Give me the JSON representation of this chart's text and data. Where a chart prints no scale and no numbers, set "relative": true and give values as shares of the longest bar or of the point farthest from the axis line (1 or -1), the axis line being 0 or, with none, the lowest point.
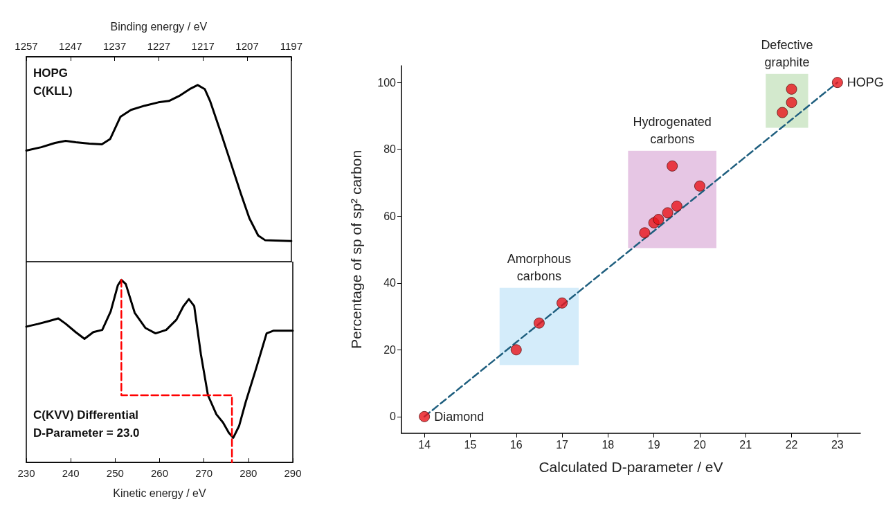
{
  "chart_data": [
    {
      "type": "line",
      "relative": true,
      "xlim": [
        1257,
        1197
      ],
      "xticks": [
        1257,
        1247,
        1237,
        1227,
        1217,
        1207,
        1197
      ],
      "xlabel": "Binding energy / eV",
      "annotations": [
        "HOPG",
        "C(KLL)"
      ],
      "series": [
        {
          "color": "#000000",
          "x": [
            1257,
            1253.6,
            1250.5,
            1248.1,
            1245.8,
            1242.7,
            1239.9,
            1238,
            1235.7,
            1233.3,
            1230.2,
            1227.1,
            1224.7,
            1222.4,
            1220,
            1218.2,
            1216.6,
            1215.4,
            1213,
            1210.7,
            1208.4,
            1206.5,
            1204.5,
            1202.9,
            1197
          ],
          "values": [
            0.629,
            0.648,
            0.672,
            0.684,
            0.676,
            0.668,
            0.664,
            0.695,
            0.82,
            0.859,
            0.883,
            0.902,
            0.91,
            0.938,
            0.977,
            1,
            0.977,
            0.91,
            0.734,
            0.559,
            0.383,
            0.246,
            0.148,
            0.121,
            0.117
          ]
        }
      ]
    },
    {
      "type": "line",
      "relative": true,
      "xlim": [
        230,
        290
      ],
      "xticks": [
        230,
        240,
        250,
        260,
        270,
        280,
        290
      ],
      "xlabel": "Kinetic energy / eV",
      "annotations": [
        "C(KVV) Differential",
        "D-Parameter = 23.0"
      ],
      "series": [
        {
          "color": "#000000",
          "x": [
            230,
            232.7,
            235,
            237.2,
            238.9,
            241.1,
            243.1,
            245.1,
            247.1,
            249,
            250.6,
            251.4,
            252.4,
            254.4,
            256.8,
            259.1,
            261.5,
            263.8,
            265.4,
            266.6,
            267.8,
            269.3,
            270.9,
            272.8,
            274.3,
            275.6,
            276.6,
            277.9,
            279.4,
            281.8,
            284.1,
            285.7,
            290
          ],
          "values": [
            0.744,
            0.759,
            0.774,
            0.789,
            0.759,
            0.714,
            0.677,
            0.714,
            0.726,
            0.827,
            0.97,
            1,
            0.977,
            0.82,
            0.737,
            0.707,
            0.726,
            0.782,
            0.857,
            0.895,
            0.857,
            0.594,
            0.368,
            0.263,
            0.218,
            0.162,
            0.135,
            0.199,
            0.331,
            0.519,
            0.707,
            0.722,
            0.722
          ]
        },
        {
          "color": "#ff0000",
          "line_style": "dashed",
          "x": [
            251.4,
            251.4,
            276.3,
            276.3
          ],
          "values": [
            1,
            0.368,
            0.368,
            0
          ]
        }
      ]
    },
    {
      "type": "scatter",
      "xlim": [
        13.5,
        23.5
      ],
      "xticks": [
        14,
        15,
        16,
        17,
        18,
        19,
        20,
        21,
        22,
        23
      ],
      "ylim": [
        -5,
        105
      ],
      "yticks": [
        0,
        20,
        40,
        60,
        80,
        100
      ],
      "xlabel": "Calculated D-parameter / eV",
      "ylabel": "Percentage of sp of sp² carbon",
      "series": [
        {
          "type": "line",
          "color": "#1f5f7f",
          "line_style": "dashed",
          "marker": "none",
          "x": [
            14,
            23
          ],
          "values": [
            0,
            100
          ]
        },
        {
          "color": "#e8141a",
          "marker": "circle",
          "x": [
            14,
            16,
            16.5,
            17,
            18.8,
            19,
            19.1,
            19.3,
            19.5,
            19.4,
            20,
            21.8,
            22,
            22,
            23
          ],
          "values": [
            0,
            20,
            28,
            34,
            55,
            58,
            59,
            61,
            63,
            75,
            69,
            91,
            94,
            98,
            100
          ]
        }
      ],
      "annotations": [
        {
          "text": "Diamond",
          "x": 14,
          "y": 0
        },
        {
          "text": "HOPG",
          "x": 23,
          "y": 100
        },
        "Amorphous carbons",
        "Hydrogenated carbons",
        "Defective graphite"
      ]
    }
  ]
}
